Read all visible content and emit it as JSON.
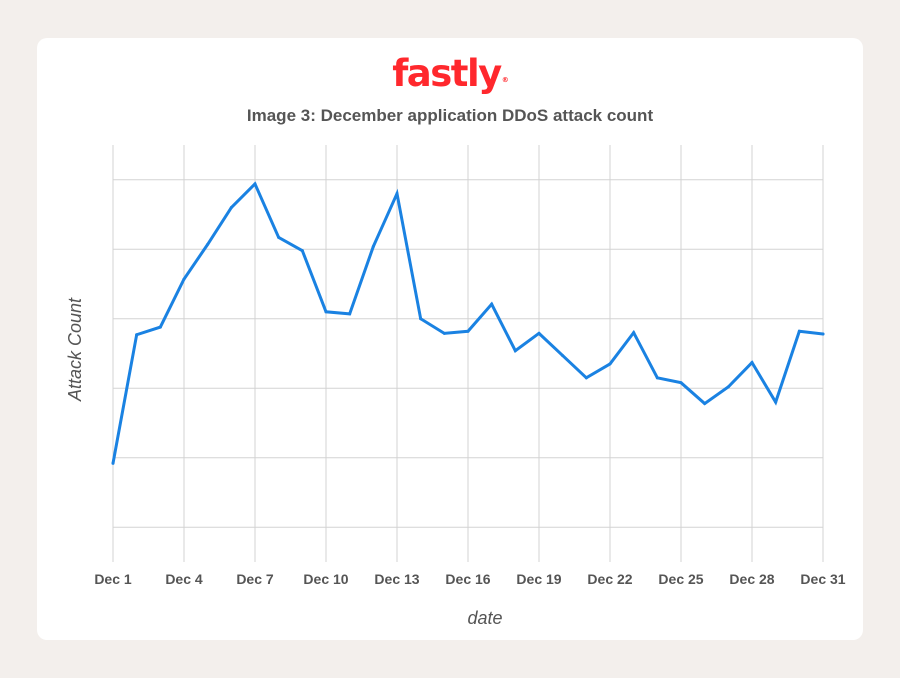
{
  "logo": {
    "text": "fastly"
  },
  "chart_data": {
    "type": "line",
    "title": "Image 3: December application DDoS attack count",
    "xlabel": "date",
    "ylabel": "Attack Count",
    "x_tick_labels": [
      "Dec 1",
      "Dec 4",
      "Dec 7",
      "Dec 10",
      "Dec 13",
      "Dec 16",
      "Dec 19",
      "Dec 22",
      "Dec 25",
      "Dec 28",
      "Dec 31"
    ],
    "x": [
      "Dec 1",
      "Dec 2",
      "Dec 3",
      "Dec 4",
      "Dec 5",
      "Dec 6",
      "Dec 7",
      "Dec 8",
      "Dec 9",
      "Dec 10",
      "Dec 11",
      "Dec 12",
      "Dec 13",
      "Dec 14",
      "Dec 15",
      "Dec 16",
      "Dec 17",
      "Dec 18",
      "Dec 19",
      "Dec 20",
      "Dec 21",
      "Dec 22",
      "Dec 23",
      "Dec 24",
      "Dec 25",
      "Dec 26",
      "Dec 27",
      "Dec 28",
      "Dec 29",
      "Dec 30",
      "Dec 31"
    ],
    "series": [
      {
        "values": [
          1.42,
          3.27,
          3.38,
          4.07,
          4.57,
          5.1,
          5.44,
          4.67,
          4.48,
          3.6,
          3.57,
          4.54,
          5.3,
          3.5,
          3.29,
          3.32,
          3.71,
          3.04,
          3.29,
          2.97,
          2.65,
          2.85,
          3.3,
          2.65,
          2.58,
          2.28,
          2.52,
          2.87,
          2.3,
          3.32,
          3.28
        ]
      }
    ],
    "ylim": [
      0,
      6
    ],
    "y_gridlines": [
      0.5,
      1.5,
      2.5,
      3.5,
      4.5,
      5.5
    ],
    "grid": true,
    "line_color": "#1a82e2",
    "grid_color": "#d3d3d3"
  }
}
